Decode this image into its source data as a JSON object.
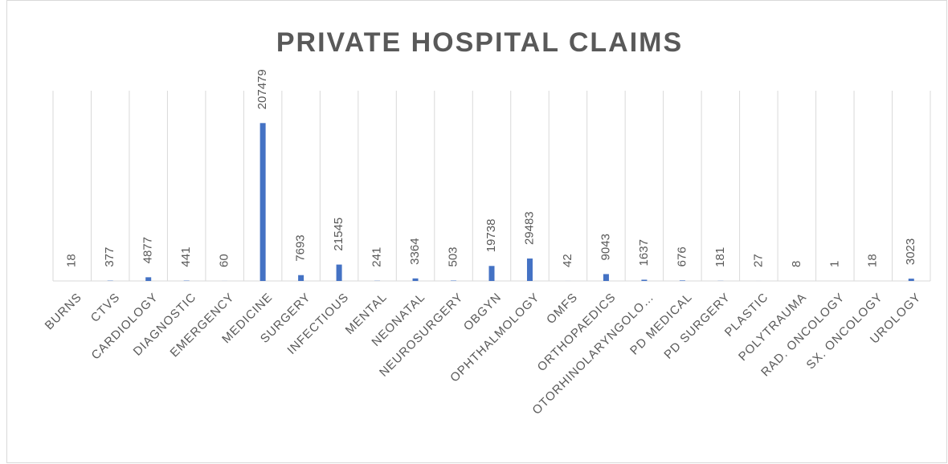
{
  "chart_data": {
    "type": "bar",
    "title": "PRIVATE HOSPITAL CLAIMS",
    "categories": [
      "BURNS",
      "CTVS",
      "CARDIOLOGY",
      "DIAGNOSTIC",
      "EMERGENCY",
      "MEDICINE",
      "SURGERY",
      "INFECTIOUS",
      "MENTAL",
      "NEONATAL",
      "NEUROSURGERY",
      "OBGYN",
      "OPHTHALMOLOGY",
      "OMFS",
      "ORTHOPAEDICS",
      "OTORHINOLARYNGOLO…",
      "PD MEDICAL",
      "PD SURGERY",
      "PLASTIC",
      "POLYTRAUMA",
      "RAD. ONCOLOGY",
      "SX. ONCOLOGY",
      "UROLOGY"
    ],
    "values": [
      18,
      377,
      4877,
      441,
      60,
      207479,
      7693,
      21545,
      241,
      3364,
      503,
      19738,
      29483,
      42,
      9043,
      1637,
      676,
      181,
      27,
      8,
      1,
      18,
      3023
    ],
    "color": "#4472c4",
    "ylim": [
      0,
      250000
    ]
  }
}
